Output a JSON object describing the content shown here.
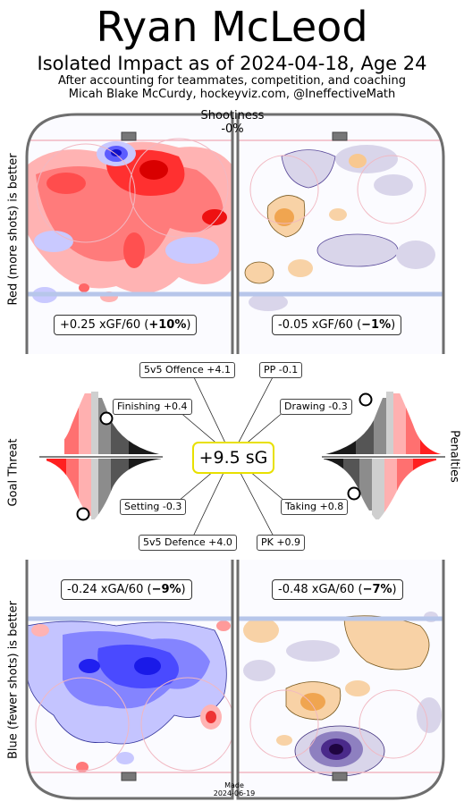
{
  "header": {
    "title": "Ryan McLeod",
    "subtitle": "Isolated Impact as of 2024-04-18, Age 24",
    "credit_line1": "After accounting for teammates, competition, and coaching",
    "credit_line2": "Micah Blake McCurdy, hockeyviz.com, @IneffectiveMath"
  },
  "shootiness": {
    "label": "Shootiness",
    "value": "-0%"
  },
  "side_labels": {
    "top": "Red (more shots) is better",
    "middle": "Goal Threat",
    "bottom": "Blue (fewer shots) is better",
    "right": "Penalties"
  },
  "rinks": {
    "offence_even": {
      "xg": "+0.25 xGF/60 (",
      "pct": "+10%",
      "close": ")"
    },
    "offence_pp": {
      "xg": "-0.05 xGF/60 (",
      "pct": "−1%",
      "close": ")"
    },
    "defence_even": {
      "xg": "-0.24 xGA/60 (",
      "pct": "−9%",
      "close": ")"
    },
    "defence_pk": {
      "xg": "-0.48 xGA/60 (",
      "pct": "−7%",
      "close": ")"
    }
  },
  "chart_data": {
    "type": "impact-summary",
    "total": {
      "label": "+9.5 sG",
      "value": 9.5
    },
    "components": [
      {
        "name": "5v5 Offence",
        "label": "5v5 Offence +4.1",
        "value": 4.1
      },
      {
        "name": "PP",
        "label": "PP -0.1",
        "value": -0.1
      },
      {
        "name": "Finishing",
        "label": "Finishing +0.4",
        "value": 0.4
      },
      {
        "name": "Drawing",
        "label": "Drawing -0.3",
        "value": -0.3
      },
      {
        "name": "Setting",
        "label": "Setting -0.3",
        "value": -0.3
      },
      {
        "name": "Taking",
        "label": "Taking +0.8",
        "value": 0.8
      },
      {
        "name": "5v5 Defence",
        "label": "5v5 Defence +4.0",
        "value": 4.0
      },
      {
        "name": "PK",
        "label": "PK +0.9",
        "value": 0.9
      }
    ],
    "xg_rates": [
      {
        "panel": "5v5 offence",
        "value": 0.25,
        "pct": 10
      },
      {
        "panel": "PP offence",
        "value": -0.05,
        "pct": -1
      },
      {
        "panel": "5v5 defence",
        "value": -0.24,
        "pct": -9
      },
      {
        "panel": "PK defence",
        "value": -0.48,
        "pct": -7
      }
    ]
  },
  "footer": {
    "made_label": "Made",
    "made_date": "2024-06-19"
  },
  "colors": {
    "offence": "#e8141b",
    "defence": "#2a2af2",
    "pp": "#f2a04a",
    "pk": "#2b0a55",
    "highlight": "#e8e000"
  }
}
